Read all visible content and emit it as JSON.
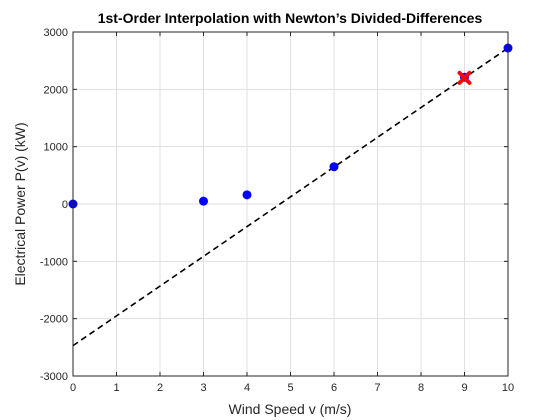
{
  "chart_data": {
    "type": "scatter",
    "title": "1st-Order Interpolation with Newton’s Divided-Differences",
    "xlabel": "Wind Speed v (m/s)",
    "ylabel": "Electrical Power P(v) (kW)",
    "xlim": [
      0,
      10
    ],
    "ylim": [
      -3000,
      3000
    ],
    "xticks": [
      0,
      1,
      2,
      3,
      4,
      5,
      6,
      7,
      8,
      9,
      10
    ],
    "yticks": [
      -3000,
      -2000,
      -1000,
      0,
      1000,
      2000,
      3000
    ],
    "grid": true,
    "series": [
      {
        "kind": "points",
        "color": "#0000ff",
        "x": [
          0,
          3,
          4,
          6,
          9,
          10
        ],
        "y": [
          0,
          50,
          160,
          650,
          2210,
          2720
        ]
      },
      {
        "kind": "dashed-line",
        "color": "#000000",
        "x": [
          0,
          10
        ],
        "y": [
          -2470,
          2720
        ]
      },
      {
        "kind": "marker-x",
        "color": "#ff0000",
        "x": [
          9
        ],
        "y": [
          2200
        ]
      }
    ]
  }
}
